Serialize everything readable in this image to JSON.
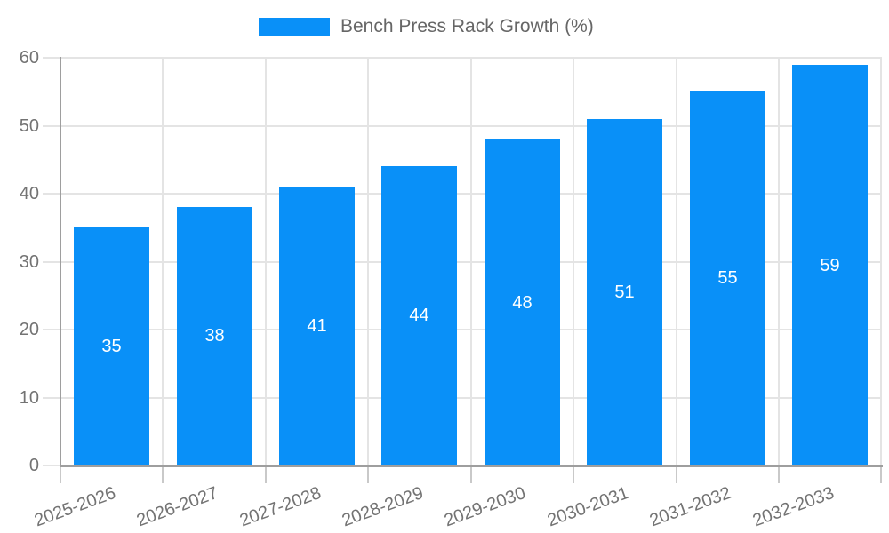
{
  "chart_data": {
    "type": "bar",
    "title": "Bench Press Rack Growth (%)",
    "legend": {
      "label": "Bench Press Rack Growth (%)",
      "position": "top"
    },
    "categories": [
      "2025-2026",
      "2026-2027",
      "2027-2028",
      "2028-2029",
      "2029-2030",
      "2030-2031",
      "2031-2032",
      "2032-2033"
    ],
    "values": [
      35,
      38,
      41,
      44,
      48,
      51,
      55,
      59
    ],
    "value_labels_shown": true,
    "xlabel": "",
    "ylabel": "",
    "ylim": [
      0,
      60
    ],
    "yticks": [
      0,
      10,
      20,
      30,
      40,
      50,
      60
    ],
    "grid": "on",
    "colors": {
      "bar": "#0990f8",
      "value_label": "#ffffff",
      "grid_line": "#e4e4e4",
      "axis_line": "#9e9e9e",
      "tick_mark": "#c9c9c9",
      "tick_label": "#737373",
      "legend_text": "#666666",
      "background": "#ffffff"
    }
  }
}
